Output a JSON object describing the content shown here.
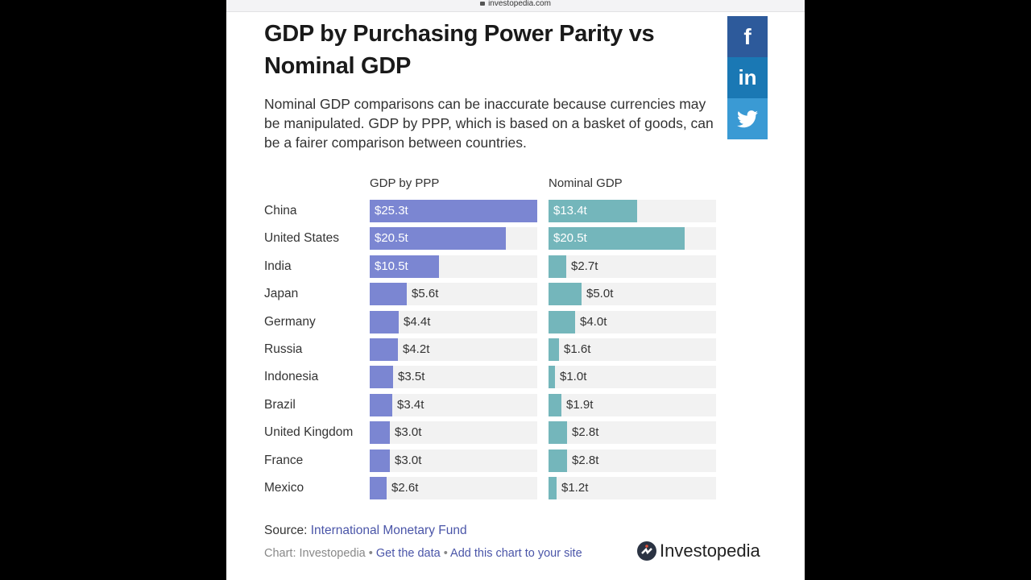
{
  "browser": {
    "url": "investopedia.com"
  },
  "title": "GDP by Purchasing Power Parity vs Nominal GDP",
  "subtitle": "Nominal GDP comparisons can be inaccurate because currencies may be manipulated. GDP by PPP, which is based on a basket of goods, can be a fairer comparison between countries.",
  "share": [
    {
      "name": "facebook-icon",
      "glyph": "f"
    },
    {
      "name": "linkedin-icon",
      "glyph": "in"
    },
    {
      "name": "twitter-icon",
      "glyph": ""
    }
  ],
  "colors": {
    "ppp": "#7b86d2",
    "nominal": "#74b6bb",
    "track": "#f2f2f2"
  },
  "chart_data": {
    "type": "bar",
    "orientation": "horizontal",
    "title": "GDP by Purchasing Power Parity vs Nominal GDP",
    "unit": "trillion USD",
    "categories": [
      "China",
      "United States",
      "India",
      "Japan",
      "Germany",
      "Russia",
      "Indonesia",
      "Brazil",
      "United Kingdom",
      "France",
      "Mexico"
    ],
    "series": [
      {
        "name": "GDP by PPP",
        "values": [
          25.3,
          20.5,
          10.5,
          5.6,
          4.4,
          4.2,
          3.5,
          3.4,
          3.0,
          3.0,
          2.6
        ],
        "labels": [
          "$25.3t",
          "$20.5t",
          "$10.5t",
          "$5.6t",
          "$4.4t",
          "$4.2t",
          "$3.5t",
          "$3.4t",
          "$3.0t",
          "$3.0t",
          "$2.6t"
        ]
      },
      {
        "name": "Nominal GDP",
        "values": [
          13.4,
          20.5,
          2.7,
          5.0,
          4.0,
          1.6,
          1.0,
          1.9,
          2.8,
          2.8,
          1.2
        ],
        "labels": [
          "$13.4t",
          "$20.5t",
          "$2.7t",
          "$5.0t",
          "$4.0t",
          "$1.6t",
          "$1.0t",
          "$1.9t",
          "$2.8t",
          "$2.8t",
          "$1.2t"
        ]
      }
    ],
    "xlim": [
      0,
      25.3
    ],
    "grid": false,
    "legend": "column-headers"
  },
  "footer": {
    "source_label": "Source: ",
    "source_link": "International Monetary Fund",
    "chart_credit": "Chart: Investopedia",
    "sep": " • ",
    "get_data": "Get the data",
    "add_chart": "Add this chart to your site",
    "brand": "Investopedia"
  }
}
